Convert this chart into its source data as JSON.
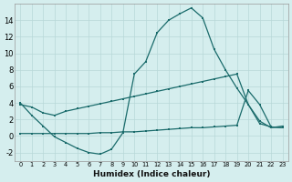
{
  "xlabel": "Humidex (Indice chaleur)",
  "background_color": "#d5eeee",
  "grid_color": "#b8d8d8",
  "line_color": "#1a6b6b",
  "x_ticks": [
    0,
    1,
    2,
    3,
    4,
    5,
    6,
    7,
    8,
    9,
    10,
    11,
    12,
    13,
    14,
    15,
    16,
    17,
    18,
    19,
    20,
    21,
    22,
    23
  ],
  "ylim": [
    -3,
    16
  ],
  "xlim": [
    -0.5,
    23.5
  ],
  "line1_y": [
    4.0,
    2.5,
    1.2,
    -0.1,
    -0.8,
    -1.5,
    -2.0,
    -2.2,
    -1.6,
    0.4,
    7.5,
    9.0,
    12.5,
    14.0,
    14.8,
    15.5,
    14.3,
    10.5,
    8.0,
    5.8,
    3.8,
    1.8,
    1.0,
    1.2
  ],
  "line2_y": [
    3.8,
    3.5,
    2.8,
    2.5,
    3.0,
    3.3,
    3.6,
    3.9,
    4.2,
    4.5,
    4.8,
    5.1,
    5.4,
    5.7,
    6.0,
    6.3,
    6.6,
    6.9,
    7.2,
    7.5,
    3.8,
    1.5,
    1.1,
    1.0
  ],
  "line3_y": [
    0.3,
    0.3,
    0.3,
    0.3,
    0.3,
    0.3,
    0.3,
    0.4,
    0.4,
    0.5,
    0.5,
    0.6,
    0.7,
    0.8,
    0.9,
    1.0,
    1.0,
    1.1,
    1.2,
    1.3,
    5.5,
    3.8,
    1.1,
    1.0
  ],
  "yticks": [
    -2,
    0,
    2,
    4,
    6,
    8,
    10,
    12,
    14
  ]
}
